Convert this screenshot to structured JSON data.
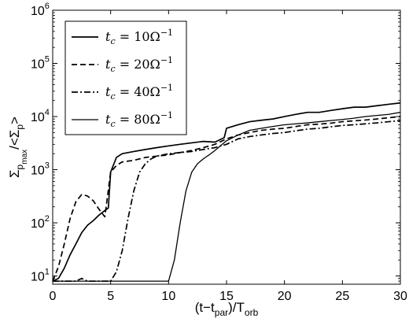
{
  "chart_data": {
    "type": "line",
    "title": "",
    "xlabel": {
      "prefix": "(t−t",
      "sub1": "par",
      "mid": ")/T",
      "sub2": "orb"
    },
    "ylabel": {
      "sigma": "Σ",
      "p": "p",
      "max": "max",
      "slash": "/<Σ",
      "p2": "p",
      "close": ">"
    },
    "xlim": [
      0,
      30
    ],
    "ylim": [
      7,
      1000000
    ],
    "yscale": "log",
    "grid": false,
    "legend_position": "top-left",
    "x_ticks": [
      "0",
      "5",
      "10",
      "15",
      "20",
      "25",
      "30"
    ],
    "y_ticks": [
      {
        "value": 10,
        "base": "10",
        "exp": "1"
      },
      {
        "value": 100,
        "base": "10",
        "exp": "2"
      },
      {
        "value": 1000,
        "base": "10",
        "exp": "3"
      },
      {
        "value": 10000,
        "base": "10",
        "exp": "4"
      },
      {
        "value": 100000,
        "base": "10",
        "exp": "5"
      },
      {
        "value": 1000000,
        "base": "10",
        "exp": "6"
      }
    ],
    "series": [
      {
        "name": "t_c = 10Ω⁻¹",
        "style": "solid",
        "x": [
          0,
          0.5,
          1,
          1.5,
          2,
          2.5,
          3,
          3.5,
          4,
          4.5,
          4.8,
          5,
          5.5,
          6,
          7,
          8,
          9,
          10,
          11,
          12,
          13,
          14,
          14.8,
          15,
          16,
          17,
          18,
          19,
          20,
          21,
          22,
          23,
          24,
          25,
          26,
          27,
          28,
          29,
          30
        ],
        "values": [
          8,
          9,
          14,
          25,
          40,
          65,
          90,
          110,
          140,
          170,
          190,
          900,
          1700,
          2000,
          2200,
          2400,
          2600,
          2800,
          3000,
          3200,
          3400,
          3300,
          4000,
          6000,
          7000,
          8000,
          8500,
          9000,
          10000,
          11000,
          12000,
          12000,
          13000,
          14000,
          15000,
          15000,
          16000,
          17000,
          18000
        ]
      },
      {
        "name": "t_c = 20Ω⁻¹",
        "style": "dashed",
        "x": [
          0,
          0.5,
          1,
          1.5,
          2,
          2.5,
          3,
          3.5,
          4,
          4.5,
          5,
          5.5,
          6,
          7,
          8,
          9,
          10,
          11,
          12,
          13,
          14,
          15,
          16,
          17,
          18,
          19,
          20,
          21,
          22,
          23,
          24,
          25,
          26,
          27,
          28,
          29,
          30
        ],
        "values": [
          8,
          15,
          40,
          120,
          250,
          340,
          320,
          260,
          180,
          130,
          900,
          1200,
          1400,
          1500,
          1700,
          1800,
          1900,
          2100,
          2300,
          2600,
          3000,
          3800,
          4500,
          5000,
          5500,
          5800,
          6000,
          6500,
          7000,
          7200,
          7500,
          8000,
          8300,
          8600,
          9000,
          9500,
          10000
        ]
      },
      {
        "name": "t_c = 40Ω⁻¹",
        "style": "dashdot",
        "x": [
          0,
          2,
          2.5,
          3,
          4,
          5,
          5.5,
          6,
          6.5,
          7,
          7.5,
          8,
          8.5,
          9,
          10,
          11,
          12,
          13,
          14,
          15,
          16,
          17,
          18,
          19,
          20,
          21,
          22,
          23,
          24,
          25,
          26,
          27,
          28,
          29,
          30
        ],
        "values": [
          8,
          8,
          9,
          8,
          8,
          8,
          12,
          30,
          120,
          400,
          900,
          1300,
          1600,
          1800,
          2000,
          2100,
          2200,
          2400,
          2600,
          3000,
          3800,
          4200,
          4500,
          4800,
          5000,
          5400,
          5800,
          6000,
          6400,
          6800,
          7000,
          7300,
          7600,
          8000,
          8400
        ]
      },
      {
        "name": "t_c = 80Ω⁻¹",
        "style": "solid-thin",
        "x": [
          0,
          2,
          4,
          6,
          8,
          10,
          10.5,
          11,
          11.5,
          12,
          12.5,
          13,
          13.5,
          14,
          15,
          16,
          17,
          18,
          19,
          20,
          21,
          22,
          23,
          24,
          25,
          26,
          27,
          28,
          29,
          30
        ],
        "values": [
          8,
          8,
          8,
          8,
          8,
          8,
          20,
          100,
          400,
          900,
          1300,
          1600,
          1900,
          2300,
          3500,
          4500,
          5500,
          6000,
          6500,
          7000,
          7300,
          7600,
          8000,
          8400,
          8800,
          9300,
          10000,
          10500,
          11000,
          12000
        ]
      }
    ]
  },
  "legend": {
    "items": [
      {
        "style": "solid",
        "var": "t",
        "sub": "c",
        "eq": " = 10Ω",
        "sup": "−1"
      },
      {
        "style": "dashed",
        "var": "t",
        "sub": "c",
        "eq": " = 20Ω",
        "sup": "−1"
      },
      {
        "style": "dashdot",
        "var": "t",
        "sub": "c",
        "eq": " = 40Ω",
        "sup": "−1"
      },
      {
        "style": "solid-thin",
        "var": "t",
        "sub": "c",
        "eq": " = 80Ω",
        "sup": "−1"
      }
    ]
  }
}
